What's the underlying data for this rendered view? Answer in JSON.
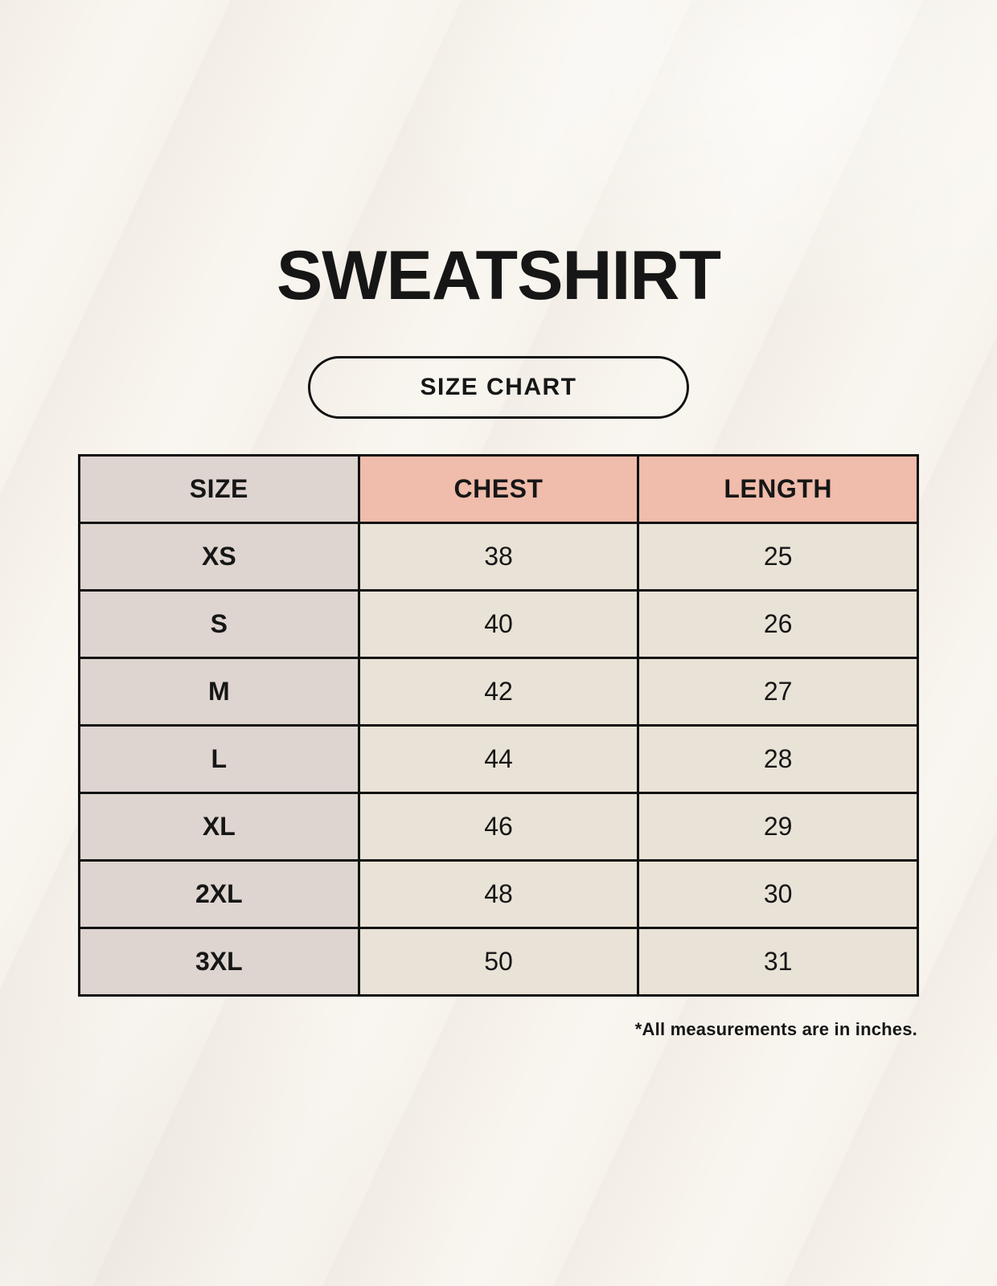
{
  "header": {
    "title": "SWEATSHIRT",
    "badge_label": "SIZE CHART"
  },
  "chart_data": {
    "type": "table",
    "title": "SWEATSHIRT",
    "columns": [
      "SIZE",
      "CHEST",
      "LENGTH"
    ],
    "rows": [
      {
        "size": "XS",
        "chest": "38",
        "length": "25"
      },
      {
        "size": "S",
        "chest": "40",
        "length": "26"
      },
      {
        "size": "M",
        "chest": "42",
        "length": "27"
      },
      {
        "size": "L",
        "chest": "44",
        "length": "28"
      },
      {
        "size": "XL",
        "chest": "46",
        "length": "29"
      },
      {
        "size": "2XL",
        "chest": "48",
        "length": "30"
      },
      {
        "size": "3XL",
        "chest": "50",
        "length": "31"
      }
    ]
  },
  "footer": {
    "note": "*All measurements are in inches."
  },
  "colors": {
    "page_bg": "#f7f3ec",
    "size_col_bg": "#ded5d0",
    "accent_header_bg": "#f0bcab",
    "value_cell_bg": "#e9e2d6",
    "border_color": "#121212",
    "text_color": "#161616"
  }
}
